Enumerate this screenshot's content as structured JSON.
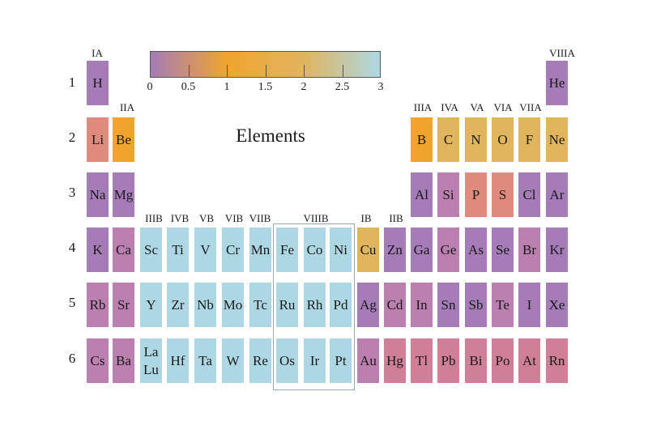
{
  "title": "Elements",
  "colors": {
    "purple": "#a57bb8",
    "mauve": "#bb7fb0",
    "pink": "#cf7f96",
    "salmon": "#de8a7d",
    "orange": "#f0a42e",
    "gold": "#e1b45e",
    "lightblue": "#add8e3"
  },
  "colorbar": {
    "ticks": [
      "0",
      "0.5",
      "1",
      "1.5",
      "2",
      "2.5",
      "3"
    ],
    "range": [
      0,
      3
    ],
    "gradient": [
      "#a57bb8",
      "#f0a42e",
      "#e1b45e",
      "#add8e3"
    ]
  },
  "group_labels": [
    "IA",
    "IIA",
    "IIIB",
    "IVB",
    "VB",
    "VIB",
    "VIIB",
    "VIIIB",
    "IB",
    "IIB",
    "IIIA",
    "IVA",
    "VA",
    "VIA",
    "VIIA",
    "VIIIA"
  ],
  "period_labels": [
    "1",
    "2",
    "3",
    "4",
    "5",
    "6"
  ],
  "elements": [
    {
      "symbol": "H",
      "period": 1,
      "group": 1,
      "color": "purple"
    },
    {
      "symbol": "He",
      "period": 1,
      "group": 18,
      "color": "purple"
    },
    {
      "symbol": "Li",
      "period": 2,
      "group": 1,
      "color": "salmon"
    },
    {
      "symbol": "Be",
      "period": 2,
      "group": 2,
      "color": "orange"
    },
    {
      "symbol": "B",
      "period": 2,
      "group": 13,
      "color": "orange"
    },
    {
      "symbol": "C",
      "period": 2,
      "group": 14,
      "color": "gold"
    },
    {
      "symbol": "N",
      "period": 2,
      "group": 15,
      "color": "gold"
    },
    {
      "symbol": "O",
      "period": 2,
      "group": 16,
      "color": "gold"
    },
    {
      "symbol": "F",
      "period": 2,
      "group": 17,
      "color": "gold"
    },
    {
      "symbol": "Ne",
      "period": 2,
      "group": 18,
      "color": "gold"
    },
    {
      "symbol": "Na",
      "period": 3,
      "group": 1,
      "color": "purple"
    },
    {
      "symbol": "Mg",
      "period": 3,
      "group": 2,
      "color": "purple"
    },
    {
      "symbol": "Al",
      "period": 3,
      "group": 13,
      "color": "purple"
    },
    {
      "symbol": "Si",
      "period": 3,
      "group": 14,
      "color": "mauve"
    },
    {
      "symbol": "P",
      "period": 3,
      "group": 15,
      "color": "salmon"
    },
    {
      "symbol": "S",
      "period": 3,
      "group": 16,
      "color": "salmon"
    },
    {
      "symbol": "Cl",
      "period": 3,
      "group": 17,
      "color": "purple"
    },
    {
      "symbol": "Ar",
      "period": 3,
      "group": 18,
      "color": "purple"
    },
    {
      "symbol": "K",
      "period": 4,
      "group": 1,
      "color": "purple"
    },
    {
      "symbol": "Ca",
      "period": 4,
      "group": 2,
      "color": "mauve"
    },
    {
      "symbol": "Sc",
      "period": 4,
      "group": 3,
      "color": "lightblue"
    },
    {
      "symbol": "Ti",
      "period": 4,
      "group": 4,
      "color": "lightblue"
    },
    {
      "symbol": "V",
      "period": 4,
      "group": 5,
      "color": "lightblue"
    },
    {
      "symbol": "Cr",
      "period": 4,
      "group": 6,
      "color": "lightblue"
    },
    {
      "symbol": "Mn",
      "period": 4,
      "group": 7,
      "color": "lightblue"
    },
    {
      "symbol": "Fe",
      "period": 4,
      "group": 8,
      "color": "lightblue"
    },
    {
      "symbol": "Co",
      "period": 4,
      "group": 9,
      "color": "lightblue"
    },
    {
      "symbol": "Ni",
      "period": 4,
      "group": 10,
      "color": "lightblue"
    },
    {
      "symbol": "Cu",
      "period": 4,
      "group": 11,
      "color": "gold"
    },
    {
      "symbol": "Zn",
      "period": 4,
      "group": 12,
      "color": "purple"
    },
    {
      "symbol": "Ga",
      "period": 4,
      "group": 13,
      "color": "purple"
    },
    {
      "symbol": "Ge",
      "period": 4,
      "group": 14,
      "color": "mauve"
    },
    {
      "symbol": "As",
      "period": 4,
      "group": 15,
      "color": "purple"
    },
    {
      "symbol": "Se",
      "period": 4,
      "group": 16,
      "color": "purple"
    },
    {
      "symbol": "Br",
      "period": 4,
      "group": 17,
      "color": "mauve"
    },
    {
      "symbol": "Kr",
      "period": 4,
      "group": 18,
      "color": "purple"
    },
    {
      "symbol": "Rb",
      "period": 5,
      "group": 1,
      "color": "mauve"
    },
    {
      "symbol": "Sr",
      "period": 5,
      "group": 2,
      "color": "mauve"
    },
    {
      "symbol": "Y",
      "period": 5,
      "group": 3,
      "color": "lightblue"
    },
    {
      "symbol": "Zr",
      "period": 5,
      "group": 4,
      "color": "lightblue"
    },
    {
      "symbol": "Nb",
      "period": 5,
      "group": 5,
      "color": "lightblue"
    },
    {
      "symbol": "Mo",
      "period": 5,
      "group": 6,
      "color": "lightblue"
    },
    {
      "symbol": "Tc",
      "period": 5,
      "group": 7,
      "color": "lightblue"
    },
    {
      "symbol": "Ru",
      "period": 5,
      "group": 8,
      "color": "lightblue"
    },
    {
      "symbol": "Rh",
      "period": 5,
      "group": 9,
      "color": "lightblue"
    },
    {
      "symbol": "Pd",
      "period": 5,
      "group": 10,
      "color": "lightblue"
    },
    {
      "symbol": "Ag",
      "period": 5,
      "group": 11,
      "color": "purple"
    },
    {
      "symbol": "Cd",
      "period": 5,
      "group": 12,
      "color": "mauve"
    },
    {
      "symbol": "In",
      "period": 5,
      "group": 13,
      "color": "mauve"
    },
    {
      "symbol": "Sn",
      "period": 5,
      "group": 14,
      "color": "purple"
    },
    {
      "symbol": "Sb",
      "period": 5,
      "group": 15,
      "color": "purple"
    },
    {
      "symbol": "Te",
      "period": 5,
      "group": 16,
      "color": "mauve"
    },
    {
      "symbol": "I",
      "period": 5,
      "group": 17,
      "color": "purple"
    },
    {
      "symbol": "Xe",
      "period": 5,
      "group": 18,
      "color": "purple"
    },
    {
      "symbol": "Cs",
      "period": 6,
      "group": 1,
      "color": "mauve"
    },
    {
      "symbol": "Ba",
      "period": 6,
      "group": 2,
      "color": "mauve"
    },
    {
      "symbol": "La",
      "symbol2": "Lu",
      "period": 6,
      "group": 3,
      "color": "lightblue"
    },
    {
      "symbol": "Hf",
      "period": 6,
      "group": 4,
      "color": "lightblue"
    },
    {
      "symbol": "Ta",
      "period": 6,
      "group": 5,
      "color": "lightblue"
    },
    {
      "symbol": "W",
      "period": 6,
      "group": 6,
      "color": "lightblue"
    },
    {
      "symbol": "Re",
      "period": 6,
      "group": 7,
      "color": "lightblue"
    },
    {
      "symbol": "Os",
      "period": 6,
      "group": 8,
      "color": "lightblue"
    },
    {
      "symbol": "Ir",
      "period": 6,
      "group": 9,
      "color": "lightblue"
    },
    {
      "symbol": "Pt",
      "period": 6,
      "group": 10,
      "color": "lightblue"
    },
    {
      "symbol": "Au",
      "period": 6,
      "group": 11,
      "color": "mauve"
    },
    {
      "symbol": "Hg",
      "period": 6,
      "group": 12,
      "color": "pink"
    },
    {
      "symbol": "Tl",
      "period": 6,
      "group": 13,
      "color": "pink"
    },
    {
      "symbol": "Pb",
      "period": 6,
      "group": 14,
      "color": "pink"
    },
    {
      "symbol": "Bi",
      "period": 6,
      "group": 15,
      "color": "pink"
    },
    {
      "symbol": "Po",
      "period": 6,
      "group": 16,
      "color": "pink"
    },
    {
      "symbol": "At",
      "period": 6,
      "group": 17,
      "color": "pink"
    },
    {
      "symbol": "Rn",
      "period": 6,
      "group": 18,
      "color": "pink"
    }
  ]
}
